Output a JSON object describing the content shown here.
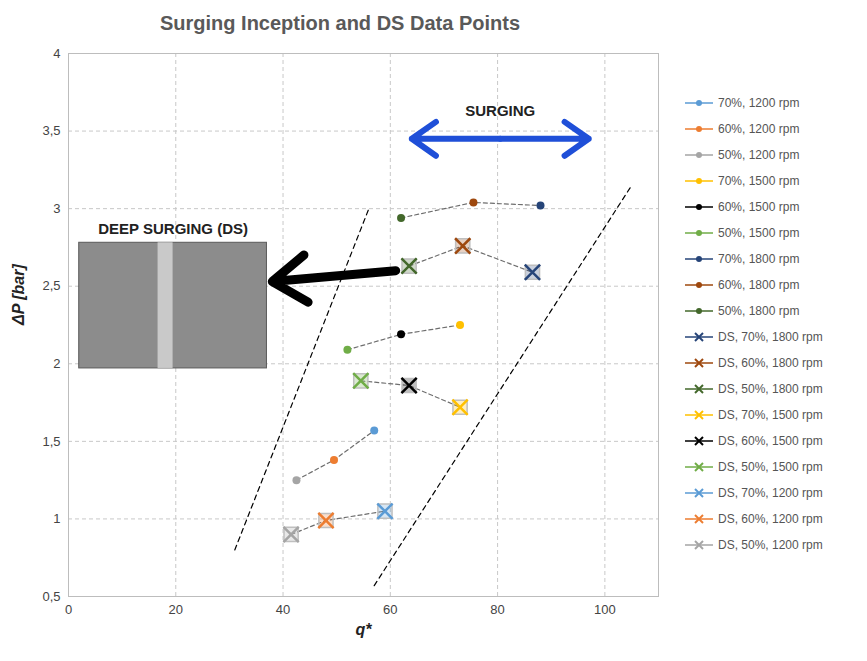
{
  "chart_data": {
    "type": "scatter",
    "title": "Surging Inception and DS Data Points",
    "x_label": "q*",
    "y_label": "ΔP [bar]",
    "xlim": [
      0,
      110
    ],
    "xticks": [
      0,
      20,
      40,
      60,
      80,
      100
    ],
    "ylim": [
      0.5,
      4
    ],
    "yticks": [
      {
        "value": 0.5,
        "label": "0,5"
      },
      1,
      {
        "value": 1.5,
        "label": "1,5"
      },
      2,
      {
        "value": 2.5,
        "label": "2,5"
      },
      3,
      {
        "value": 3.5,
        "label": "3,5"
      },
      4
    ],
    "grid": true,
    "legend": "right",
    "series": [
      {
        "name": "70%, 1200 rpm",
        "color": "#5b9bd5",
        "marker": "circle",
        "x": [
          57
        ],
        "y": [
          1.57
        ]
      },
      {
        "name": "60%, 1200 rpm",
        "color": "#ed7d31",
        "marker": "circle",
        "x": [
          49.5
        ],
        "y": [
          1.38
        ]
      },
      {
        "name": "50%, 1200 rpm",
        "color": "#a5a5a5",
        "marker": "circle",
        "x": [
          42.5
        ],
        "y": [
          1.25
        ]
      },
      {
        "name": "70%, 1500 rpm",
        "color": "#ffc000",
        "marker": "circle",
        "x": [
          73
        ],
        "y": [
          2.25
        ]
      },
      {
        "name": "60%, 1500 rpm",
        "color": "#000000",
        "marker": "circle",
        "x": [
          62
        ],
        "y": [
          2.19
        ]
      },
      {
        "name": "50%, 1500 rpm",
        "color": "#70ad47",
        "marker": "circle",
        "x": [
          52
        ],
        "y": [
          2.09
        ]
      },
      {
        "name": "70%, 1800 rpm",
        "color": "#264478",
        "marker": "circle",
        "x": [
          88
        ],
        "y": [
          3.02
        ]
      },
      {
        "name": "60%, 1800 rpm",
        "color": "#9e480e",
        "marker": "circle",
        "x": [
          75.5
        ],
        "y": [
          3.04
        ]
      },
      {
        "name": "50%, 1800 rpm",
        "color": "#43682b",
        "marker": "circle",
        "x": [
          62
        ],
        "y": [
          2.94
        ]
      },
      {
        "name": "DS, 70%, 1800 rpm",
        "color": "#264478",
        "marker": "x",
        "x": [
          86.5
        ],
        "y": [
          2.59
        ]
      },
      {
        "name": "DS, 60%, 1800 rpm",
        "color": "#9e480e",
        "marker": "x",
        "x": [
          73.5
        ],
        "y": [
          2.76
        ]
      },
      {
        "name": "DS, 50%, 1800 rpm",
        "color": "#43682b",
        "marker": "x",
        "x": [
          63.5
        ],
        "y": [
          2.63
        ]
      },
      {
        "name": "DS, 70%, 1500 rpm",
        "color": "#ffc000",
        "marker": "x",
        "x": [
          73
        ],
        "y": [
          1.72
        ]
      },
      {
        "name": "DS, 60%, 1500 rpm",
        "color": "#000000",
        "marker": "x",
        "x": [
          63.5
        ],
        "y": [
          1.86
        ]
      },
      {
        "name": "DS, 50%, 1500 rpm",
        "color": "#70ad47",
        "marker": "x",
        "x": [
          54.5
        ],
        "y": [
          1.89
        ]
      },
      {
        "name": "DS, 70%, 1200 rpm",
        "color": "#5b9bd5",
        "marker": "x",
        "x": [
          59
        ],
        "y": [
          1.05
        ]
      },
      {
        "name": "DS, 60%, 1200 rpm",
        "color": "#ed7d31",
        "marker": "x",
        "x": [
          48
        ],
        "y": [
          0.99
        ]
      },
      {
        "name": "DS, 50%, 1200 rpm",
        "color": "#a5a5a5",
        "marker": "x",
        "x": [
          41.5
        ],
        "y": [
          0.9
        ]
      }
    ],
    "boundary_lines": [
      {
        "x": [
          31,
          56
        ],
        "y": [
          0.8,
          3.0
        ]
      },
      {
        "x": [
          57,
          105
        ],
        "y": [
          0.57,
          3.15
        ]
      }
    ],
    "inset": {
      "x": [
        2,
        37
      ],
      "y": [
        1.97,
        2.78
      ]
    },
    "annotations": [
      {
        "text": "SURGING",
        "x": 80.5,
        "y": 3.63
      },
      {
        "text": "DEEP SURGING (DS)",
        "x": 19.5,
        "y": 2.87
      }
    ],
    "arrows": [
      {
        "x1": 61,
        "y1": 2.6,
        "x2": 38,
        "y2": 2.53,
        "color": "#000000"
      },
      {
        "x1": 64,
        "y1": 3.45,
        "x2": 97,
        "y2": 3.45,
        "color": "#1f4fd8",
        "both_ends": true
      }
    ]
  }
}
